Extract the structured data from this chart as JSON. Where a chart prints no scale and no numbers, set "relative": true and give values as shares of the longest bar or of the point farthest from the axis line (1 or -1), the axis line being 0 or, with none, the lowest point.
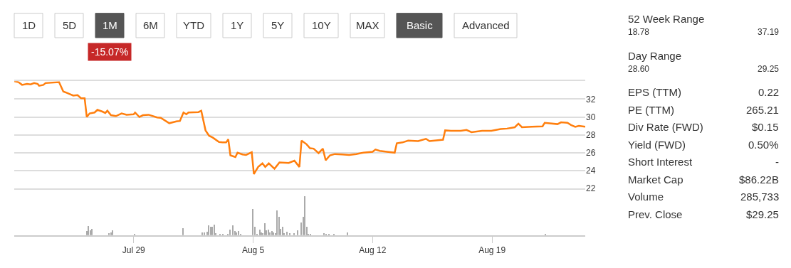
{
  "chart_data": [
    {
      "type": "other",
      "categories": [
        "1D",
        "5D",
        "1M",
        "6M",
        "YTD",
        "1Y",
        "5Y",
        "10Y",
        "MAX",
        "Basic",
        "Advanced"
      ],
      "colors": [
        "#ffffff",
        "#ffffff",
        "#555555",
        "#ffffff",
        "#ffffff",
        "#ffffff",
        "#ffffff",
        "#ffffff",
        "#ffffff",
        "#555555",
        "#ffffff"
      ],
      "annotations": [
        "-15.07%"
      ]
    },
    {
      "type": "line",
      "color": "#ff7f0e",
      "grid": "y",
      "tick_labels": "y",
      "xlim": [
        "--07-22T00:00",
        "--08-24T11:00"
      ],
      "xticks": [
        {
          "value": "--07-29",
          "label": null
        },
        {
          "value": "--08-05",
          "label": null
        },
        {
          "value": "--08-12",
          "label": null
        },
        {
          "value": "--08-19",
          "label": null
        }
      ],
      "ylim": [
        22,
        34
      ],
      "yticks": [
        22,
        24,
        26,
        28,
        30,
        32,
        {
          "value": 34,
          "label": null
        }
      ],
      "x": [
        "--07-22T00:00",
        "--07-22T06:00",
        "--07-22T11:00",
        "--07-22T18:00",
        "--07-22T23:00",
        "--07-23T04:00",
        "--07-23T09:00",
        "--07-23T11:00",
        "--07-23T17:00",
        "--07-23T20:00",
        "--07-24T15:00",
        "--07-24T21:00",
        "--07-25T02:00",
        "--07-25T11:00",
        "--07-25T17:00",
        "--07-25T22:00",
        "--07-26T03:00",
        "--07-26T06:00",
        "--07-26T10:00",
        "--07-26T17:00",
        "--07-26T21:00",
        "--07-27T04:00",
        "--07-27T08:00",
        "--07-27T11:00",
        "--07-27T16:00",
        "--07-27T23:00",
        "--07-28T07:00",
        "--07-28T14:00",
        "--07-29T00:00",
        "--07-29T02:00",
        "--07-29T08:00",
        "--07-29T13:00",
        "--07-29T21:00",
        "--07-30T09:00",
        "--07-30T14:00",
        "--07-31T02:00",
        "--07-31T12:00",
        "--07-31T17:00",
        "--07-31T22:00",
        "--08-01T02:00",
        "--08-01T05:00",
        "--08-01T19:00",
        "--08-01T23:00",
        "--08-02T05:00",
        "--08-02T10:00",
        "--08-02T15:00",
        "--08-03T00:00",
        "--08-03T05:00",
        "--08-03T10:00",
        "--08-03T13:00",
        "--08-03T16:00",
        "--08-03T23:00",
        "--08-04T02:00",
        "--08-04T09:00",
        "--08-04T14:00",
        "--08-04T22:00",
        "--08-05T01:00",
        "--08-05T07:00",
        "--08-05T13:00",
        "--08-05T17:00",
        "--08-05T22:00",
        "--08-06T06:00",
        "--08-06T13:00",
        "--08-07T02:00",
        "--08-07T10:00",
        "--08-07T17:00",
        "--08-07T20:00",
        "--08-08T03:00",
        "--08-08T08:00",
        "--08-08T13:00",
        "--08-08T20:00",
        "--08-09T02:00",
        "--08-09T06:00",
        "--08-09T12:00",
        "--08-09T19:00",
        "--08-10T05:00",
        "--08-10T15:00",
        "--08-11T01:00",
        "--08-11T11:00",
        "--08-12T00:00",
        "--08-12T04:00",
        "--08-12T10:00",
        "--08-12T20:00",
        "--08-13T07:00",
        "--08-13T10:00",
        "--08-13T18:00",
        "--08-14T02:00",
        "--08-14T16:00",
        "--08-15T03:00",
        "--08-15T08:00",
        "--08-16T03:00",
        "--08-16T06:00",
        "--08-16T14:00",
        "--08-17T04:00",
        "--08-17T12:00",
        "--08-17T19:00",
        "--08-18T10:00",
        "--08-18T23:00",
        "--08-19T12:00",
        "--08-19T21:00",
        "--08-20T08:00",
        "--08-20T13:00",
        "--08-20T18:00",
        "--08-21T08:00",
        "--08-21T23:00",
        "--08-22T02:00",
        "--08-22T20:00",
        "--08-23T01:00",
        "--08-23T10:00",
        "--08-23T15:00",
        "--08-23T21:00",
        "--08-24T02:00",
        "--08-24T11:00"
      ],
      "values": [
        34.0,
        33.9,
        33.6,
        33.7,
        33.65,
        33.8,
        33.7,
        33.5,
        33.6,
        33.8,
        33.9,
        32.85,
        32.7,
        32.4,
        32.45,
        32.1,
        32.1,
        30.0,
        30.4,
        30.5,
        30.8,
        30.6,
        30.45,
        30.7,
        30.2,
        30.1,
        30.4,
        30.25,
        30.3,
        30.5,
        30.0,
        30.2,
        30.25,
        29.95,
        29.9,
        29.3,
        29.5,
        29.55,
        30.5,
        30.3,
        30.5,
        30.55,
        30.7,
        28.5,
        27.9,
        27.7,
        27.2,
        27.15,
        27.15,
        27.5,
        25.7,
        25.5,
        26.0,
        25.8,
        25.75,
        26.05,
        23.6,
        24.4,
        24.8,
        24.4,
        24.8,
        24.2,
        24.9,
        24.85,
        25.1,
        24.4,
        27.35,
        26.95,
        26.5,
        26.45,
        25.95,
        26.45,
        25.15,
        25.7,
        25.85,
        25.8,
        25.75,
        25.85,
        26.0,
        26.1,
        26.35,
        26.2,
        26.1,
        26.0,
        27.05,
        27.15,
        27.35,
        27.3,
        27.55,
        27.3,
        27.45,
        28.5,
        28.45,
        28.45,
        28.55,
        28.3,
        28.45,
        28.45,
        28.65,
        28.7,
        28.85,
        29.25,
        28.85,
        28.9,
        28.95,
        29.35,
        29.2,
        29.4,
        29.35,
        29.1,
        28.9,
        29.0,
        28.9
      ]
    },
    {
      "type": "bar",
      "relative": true,
      "color": "#aaaaaa",
      "grid": false,
      "tick_labels": "x",
      "xlim": [
        "--07-22T00:00",
        "--08-24T11:00"
      ],
      "xticks": [
        {
          "value": "--07-29",
          "label": "Jul 29"
        },
        {
          "value": "--08-05",
          "label": "Aug 5"
        },
        {
          "value": "--08-12",
          "label": "Aug 12"
        },
        {
          "value": "--08-19",
          "label": "Aug 19"
        }
      ],
      "x": [
        "--07-26T06:00",
        "--07-26T08:00",
        "--07-26T11:00",
        "--07-26T13:00",
        "--07-27T13:00",
        "--07-27T16:00",
        "--07-27T18:00",
        "--07-29T01:00",
        "--07-31T21:00",
        "--08-02T00:00",
        "--08-02T03:00",
        "--08-02T07:00",
        "--08-02T09:00",
        "--08-02T12:00",
        "--08-02T14:00",
        "--08-02T17:00",
        "--08-02T19:00",
        "--08-03T01:00",
        "--08-03T05:00",
        "--08-03T12:00",
        "--08-03T15:00",
        "--08-03T19:00",
        "--08-03T22:00",
        "--08-04T00:00",
        "--08-04T03:00",
        "--08-04T06:00",
        "--08-05T00:00",
        "--08-05T03:00",
        "--08-05T06:00",
        "--08-05T10:00",
        "--08-05T12:00",
        "--08-05T14:00",
        "--08-05T17:00",
        "--08-05T19:00",
        "--08-05T22:00",
        "--08-06T00:00",
        "--08-06T03:00",
        "--08-06T05:00",
        "--08-06T08:00",
        "--08-06T10:00",
        "--08-06T13:00",
        "--08-06T15:00",
        "--08-06T18:00",
        "--08-06T20:00",
        "--08-07T00:00",
        "--08-07T04:00",
        "--08-07T10:00",
        "--08-07T15:00",
        "--08-07T20:00",
        "--08-07T23:00",
        "--08-08T01:00",
        "--08-08T04:00",
        "--08-08T06:00",
        "--08-08T09:00",
        "--08-09T04:00",
        "--08-09T07:00",
        "--08-09T11:00",
        "--08-09T18:00",
        "--08-10T13:00",
        "--08-22T03:00"
      ],
      "values": [
        0.11,
        0.23,
        0.13,
        0.16,
        0.05,
        0.07,
        0.12,
        0.04,
        0.18,
        0.07,
        0.07,
        0.09,
        0.25,
        0.21,
        0.22,
        0.28,
        0.06,
        0.04,
        0.04,
        0.04,
        0.14,
        0.25,
        0.1,
        0.07,
        0.11,
        0.04,
        0.68,
        0.21,
        0.04,
        0.14,
        0.07,
        0.06,
        0.3,
        0.13,
        0.15,
        0.07,
        0.11,
        0.07,
        0.06,
        0.64,
        0.48,
        0.17,
        0.21,
        0.06,
        0.09,
        0.05,
        0.06,
        0.12,
        0.32,
        0.47,
        1,
        0.22,
        0.04,
        0.02,
        0.06,
        0.04,
        0.04,
        0.02,
        0.07,
        0.02
      ]
    },
    {
      "type": "other",
      "annotations": [
        "52 Week Range",
        "18.78",
        "37.19",
        "Day Range",
        "28.60",
        "29.25"
      ],
      "categories": [
        "EPS (TTM)",
        "PE (TTM)",
        "Div Rate (FWD)",
        "Yield (FWD)",
        "Short Interest",
        "Market Cap",
        "Volume",
        "Prev. Close"
      ],
      "value_labels": [
        "0.22",
        "265.21",
        "$0.15",
        "0.50%",
        "-",
        "$86.22B",
        "285,733",
        "$29.25"
      ]
    }
  ]
}
